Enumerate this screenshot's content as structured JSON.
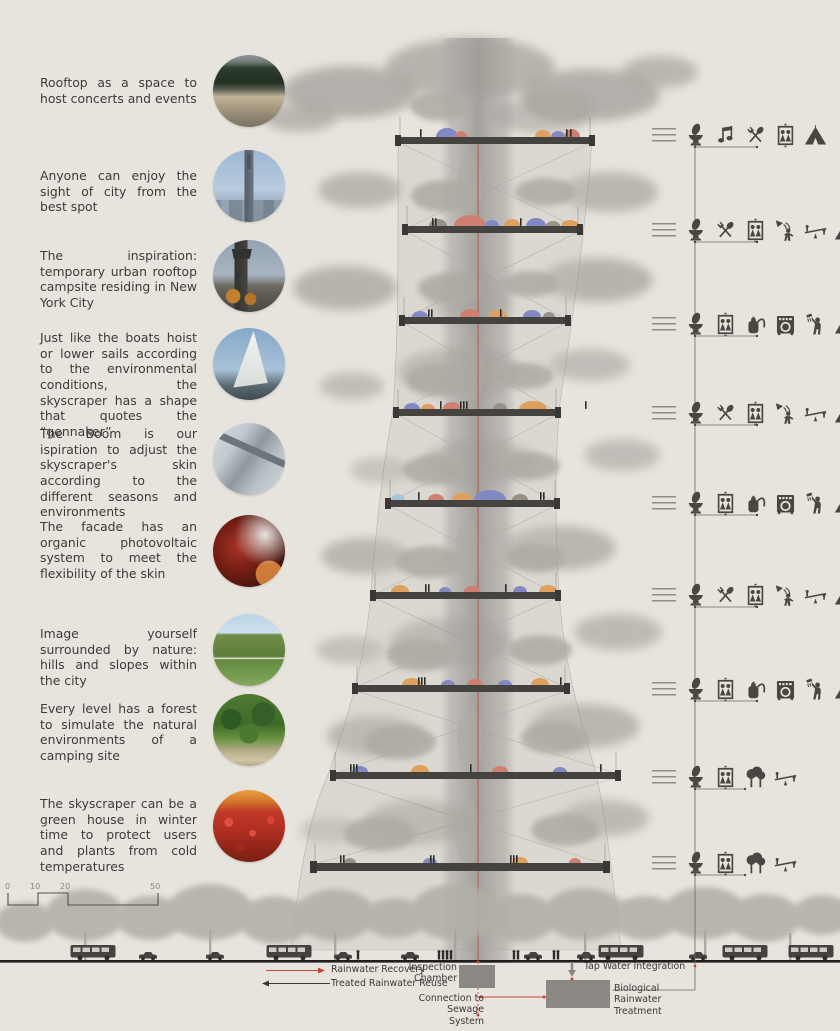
{
  "left_items": [
    {
      "text": "Rooftop as a space to host concerts and events",
      "image": "concert-crowd"
    },
    {
      "text": "Anyone can enjoy the sight of city from the best spot",
      "image": "city-skyline"
    },
    {
      "text": "The inspiration: temporary urban rooftop campsite residing in New York City",
      "image": "rooftop-water-tower"
    },
    {
      "text": "Just like the boats hoist or lower sails according to the environmental conditions, the skyscraper has a shape that quotes the “gennaker”",
      "image": "sailboat-gennaker"
    },
    {
      "text": "The Boom is our ispiration to adjust the skyscraper's skin according to the different seasons and environments",
      "image": "sail-boom"
    },
    {
      "text": "The facade has an organic photovoltaic system to meet the flexibility of the skin",
      "image": "organic-photovoltaic"
    },
    {
      "text": "Image yourself surrounded by nature: hills and slopes within the city",
      "image": "green-hills"
    },
    {
      "text": "Every level has a forest to simulate the natural environments of a camping site",
      "image": "forest-path"
    },
    {
      "text": "The skyscraper can be a green house in winter time to protect users and plants from cold temperatures",
      "image": "poppy-field"
    }
  ],
  "amenity_rows": [
    {
      "icons": [
        "toilet",
        "music",
        "dining",
        "elevator",
        "tent"
      ]
    },
    {
      "icons": [
        "toilet",
        "dining",
        "elevator",
        "antenna",
        "seesaw",
        "tent"
      ]
    },
    {
      "icons": [
        "toilet",
        "elevator",
        "tank",
        "washer",
        "shower",
        "tent"
      ]
    },
    {
      "icons": [
        "toilet",
        "dining",
        "elevator",
        "antenna",
        "seesaw",
        "tent"
      ]
    },
    {
      "icons": [
        "toilet",
        "elevator",
        "tank",
        "washer",
        "shower",
        "tent"
      ]
    },
    {
      "icons": [
        "toilet",
        "dining",
        "elevator",
        "antenna",
        "seesaw",
        "tent"
      ]
    },
    {
      "icons": [
        "toilet",
        "elevator",
        "tank",
        "washer",
        "shower",
        "tent"
      ]
    },
    {
      "icons": [
        "toilet",
        "elevator",
        "trees",
        "seesaw"
      ]
    },
    {
      "icons": [
        "toilet",
        "elevator",
        "trees",
        "seesaw"
      ]
    }
  ],
  "scale_bar": {
    "labels": [
      "0",
      "10",
      "20",
      "50"
    ]
  },
  "annotations": {
    "legend_rainwater": "Rainwater Recovery",
    "legend_treated": "Treated Rainwater Reuse",
    "inspection_chamber": "Inspection Chamber",
    "tap_water": "Tap Water Integration",
    "sewage": "Connection to Sewage System",
    "treatment": "Biological Rainwater Treatment"
  },
  "tower": {
    "floors": 9
  },
  "colors": {
    "background": "#e7e4de",
    "ink": "#4a4742",
    "red": "#c4453a",
    "cloud": "#a8a5a0",
    "slab": "#45433f",
    "box": "#8b8883"
  }
}
